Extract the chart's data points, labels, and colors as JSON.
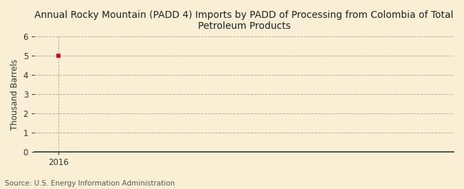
{
  "title_line1": "Annual Rocky Mountain (PADD 4) Imports by PADD of Processing from Colombia of Total",
  "title_line2": "Petroleum Products",
  "ylabel": "Thousand Barrels",
  "source": "Source: U.S. Energy Information Administration",
  "data_x": [
    2016
  ],
  "data_y": [
    5
  ],
  "marker_color": "#cc0000",
  "marker_size": 4,
  "ylim": [
    0,
    6
  ],
  "yticks": [
    0,
    1,
    2,
    3,
    4,
    5,
    6
  ],
  "xlim": [
    2015.6,
    2022.5
  ],
  "xticks": [
    2016
  ],
  "background_color": "#faefd4",
  "plot_bg_color": "#faefd4",
  "grid_color": "#b0a898",
  "vline_color": "#b0a898",
  "spine_color": "#333333",
  "tick_color": "#333333",
  "title_fontsize": 10,
  "label_fontsize": 8.5,
  "tick_fontsize": 8.5,
  "source_fontsize": 7.5
}
